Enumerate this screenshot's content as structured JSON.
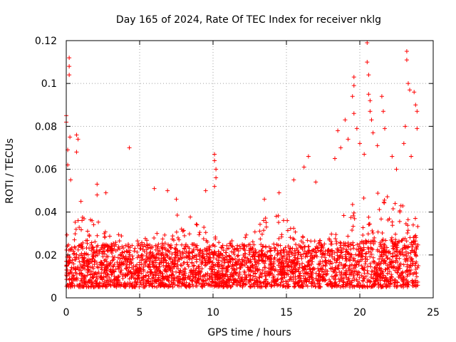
{
  "chart_data": {
    "type": "scatter",
    "title": "Day 165 of 2024, Rate Of TEC Index for receiver nklg",
    "xlabel": "GPS time / hours",
    "ylabel": "ROTI / TECUs",
    "xlim": [
      0,
      25
    ],
    "ylim": [
      0,
      0.12
    ],
    "xticks": [
      0,
      5,
      10,
      15,
      20,
      25
    ],
    "xtick_labels": [
      "0",
      "5",
      "10",
      "15",
      "20",
      "25"
    ],
    "yticks": [
      0,
      0.02,
      0.04,
      0.06,
      0.08,
      0.1,
      0.12
    ],
    "ytick_labels": [
      "0",
      "0.02",
      "0.04",
      "0.06",
      "0.08",
      "0.1",
      "0.12"
    ],
    "grid": true,
    "marker": "plus",
    "color": "#ff0000",
    "series": [
      {
        "name": "ROTI",
        "x_range": [
          0,
          24
        ],
        "typical_band": [
          0.005,
          0.025
        ],
        "notable_points": [
          {
            "x": 0.0,
            "y": 0.085
          },
          {
            "x": 0.0,
            "y": 0.082
          },
          {
            "x": 0.1,
            "y": 0.069
          },
          {
            "x": 0.1,
            "y": 0.062
          },
          {
            "x": 0.2,
            "y": 0.112
          },
          {
            "x": 0.2,
            "y": 0.108
          },
          {
            "x": 0.2,
            "y": 0.104
          },
          {
            "x": 0.25,
            "y": 0.075
          },
          {
            "x": 0.3,
            "y": 0.055
          },
          {
            "x": 0.7,
            "y": 0.076
          },
          {
            "x": 0.7,
            "y": 0.068
          },
          {
            "x": 0.8,
            "y": 0.074
          },
          {
            "x": 1.0,
            "y": 0.045
          },
          {
            "x": 2.1,
            "y": 0.053
          },
          {
            "x": 2.1,
            "y": 0.048
          },
          {
            "x": 2.7,
            "y": 0.049
          },
          {
            "x": 4.3,
            "y": 0.07
          },
          {
            "x": 6.0,
            "y": 0.051
          },
          {
            "x": 6.9,
            "y": 0.05
          },
          {
            "x": 7.5,
            "y": 0.046
          },
          {
            "x": 9.5,
            "y": 0.05
          },
          {
            "x": 10.1,
            "y": 0.067
          },
          {
            "x": 10.1,
            "y": 0.064
          },
          {
            "x": 10.2,
            "y": 0.06
          },
          {
            "x": 10.2,
            "y": 0.056
          },
          {
            "x": 10.1,
            "y": 0.052
          },
          {
            "x": 13.5,
            "y": 0.046
          },
          {
            "x": 14.5,
            "y": 0.049
          },
          {
            "x": 15.5,
            "y": 0.055
          },
          {
            "x": 16.2,
            "y": 0.061
          },
          {
            "x": 16.5,
            "y": 0.066
          },
          {
            "x": 17.0,
            "y": 0.054
          },
          {
            "x": 18.3,
            "y": 0.065
          },
          {
            "x": 18.5,
            "y": 0.078
          },
          {
            "x": 18.7,
            "y": 0.07
          },
          {
            "x": 19.0,
            "y": 0.083
          },
          {
            "x": 19.2,
            "y": 0.074
          },
          {
            "x": 19.5,
            "y": 0.094
          },
          {
            "x": 19.6,
            "y": 0.103
          },
          {
            "x": 19.6,
            "y": 0.099
          },
          {
            "x": 19.6,
            "y": 0.086
          },
          {
            "x": 19.8,
            "y": 0.079
          },
          {
            "x": 20.0,
            "y": 0.072
          },
          {
            "x": 20.3,
            "y": 0.067
          },
          {
            "x": 20.5,
            "y": 0.119
          },
          {
            "x": 20.5,
            "y": 0.11
          },
          {
            "x": 20.6,
            "y": 0.104
          },
          {
            "x": 20.6,
            "y": 0.095
          },
          {
            "x": 20.7,
            "y": 0.092
          },
          {
            "x": 20.7,
            "y": 0.087
          },
          {
            "x": 20.8,
            "y": 0.083
          },
          {
            "x": 20.9,
            "y": 0.077
          },
          {
            "x": 21.2,
            "y": 0.071
          },
          {
            "x": 21.5,
            "y": 0.094
          },
          {
            "x": 21.6,
            "y": 0.087
          },
          {
            "x": 21.7,
            "y": 0.079
          },
          {
            "x": 22.2,
            "y": 0.066
          },
          {
            "x": 22.5,
            "y": 0.06
          },
          {
            "x": 23.0,
            "y": 0.072
          },
          {
            "x": 23.1,
            "y": 0.08
          },
          {
            "x": 23.2,
            "y": 0.115
          },
          {
            "x": 23.2,
            "y": 0.111
          },
          {
            "x": 23.3,
            "y": 0.1
          },
          {
            "x": 23.4,
            "y": 0.097
          },
          {
            "x": 23.5,
            "y": 0.066
          },
          {
            "x": 23.7,
            "y": 0.096
          },
          {
            "x": 23.8,
            "y": 0.09
          },
          {
            "x": 23.9,
            "y": 0.087
          },
          {
            "x": 23.9,
            "y": 0.079
          }
        ]
      }
    ]
  }
}
